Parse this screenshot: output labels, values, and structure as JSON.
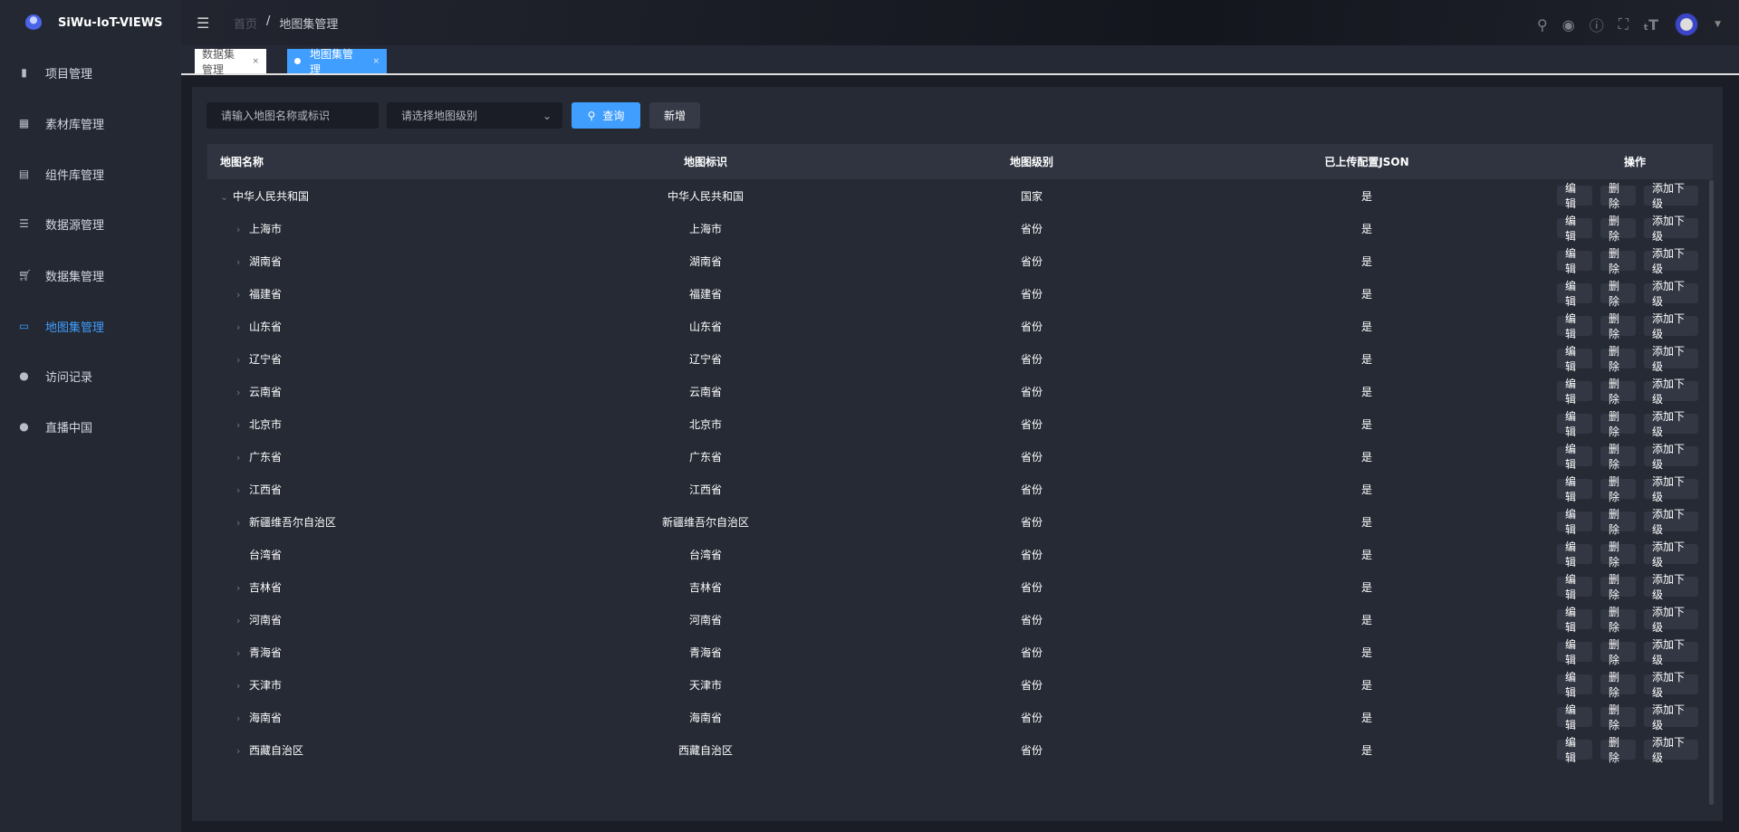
{
  "app": {
    "title": "SiWu-IoT-VIEWS"
  },
  "sidebar": {
    "items": [
      {
        "label": "项目管理",
        "icon": "file-copy-icon"
      },
      {
        "label": "素材库管理",
        "icon": "grid-icon"
      },
      {
        "label": "组件库管理",
        "icon": "document-icon"
      },
      {
        "label": "数据源管理",
        "icon": "sliders-icon"
      },
      {
        "label": "数据集管理",
        "icon": "cart-icon"
      },
      {
        "label": "地图集管理",
        "icon": "monitor-chart-icon",
        "active": true
      },
      {
        "label": "访问记录",
        "icon": "globe-icon"
      },
      {
        "label": "直播中国",
        "icon": "globe-icon"
      }
    ]
  },
  "header": {
    "breadcrumb": [
      "首页",
      "/",
      "地图集管理"
    ],
    "tools": [
      "search-icon",
      "github-icon",
      "help-icon",
      "fullscreen-icon",
      "font-size-icon"
    ]
  },
  "tabs": [
    {
      "label": "数据集管理",
      "close": "×"
    },
    {
      "label": "地图集管理",
      "close": "×",
      "active": true
    }
  ],
  "filters": {
    "name_placeholder": "请输入地图名称或标识",
    "level_placeholder": "请选择地图级别",
    "search_label": "查询",
    "add_label": "新增"
  },
  "colors": {
    "accent": "#409eff",
    "background": "#1a1d26",
    "sidebar": "#242833",
    "panel": "#252a34"
  },
  "table": {
    "headers": [
      "地图名称",
      "地图标识",
      "地图级别",
      "已上传配置JSON",
      "操作"
    ],
    "actions": [
      "编辑",
      "删除",
      "添加下级"
    ],
    "rows": [
      {
        "name": "中华人民共和国",
        "id": "中华人民共和国",
        "level": "国家",
        "json": "是",
        "depth": 0,
        "expand": "expanded"
      },
      {
        "name": "上海市",
        "id": "上海市",
        "level": "省份",
        "json": "是",
        "depth": 1,
        "expand": "collapsed"
      },
      {
        "name": "湖南省",
        "id": "湖南省",
        "level": "省份",
        "json": "是",
        "depth": 1,
        "expand": "collapsed"
      },
      {
        "name": "福建省",
        "id": "福建省",
        "level": "省份",
        "json": "是",
        "depth": 1,
        "expand": "collapsed"
      },
      {
        "name": "山东省",
        "id": "山东省",
        "level": "省份",
        "json": "是",
        "depth": 1,
        "expand": "collapsed"
      },
      {
        "name": "辽宁省",
        "id": "辽宁省",
        "level": "省份",
        "json": "是",
        "depth": 1,
        "expand": "collapsed"
      },
      {
        "name": "云南省",
        "id": "云南省",
        "level": "省份",
        "json": "是",
        "depth": 1,
        "expand": "collapsed"
      },
      {
        "name": "北京市",
        "id": "北京市",
        "level": "省份",
        "json": "是",
        "depth": 1,
        "expand": "collapsed"
      },
      {
        "name": "广东省",
        "id": "广东省",
        "level": "省份",
        "json": "是",
        "depth": 1,
        "expand": "collapsed"
      },
      {
        "name": "江西省",
        "id": "江西省",
        "level": "省份",
        "json": "是",
        "depth": 1,
        "expand": "collapsed"
      },
      {
        "name": "新疆维吾尔自治区",
        "id": "新疆维吾尔自治区",
        "level": "省份",
        "json": "是",
        "depth": 1,
        "expand": "collapsed"
      },
      {
        "name": "台湾省",
        "id": "台湾省",
        "level": "省份",
        "json": "是",
        "depth": 1,
        "expand": "none"
      },
      {
        "name": "吉林省",
        "id": "吉林省",
        "level": "省份",
        "json": "是",
        "depth": 1,
        "expand": "collapsed"
      },
      {
        "name": "河南省",
        "id": "河南省",
        "level": "省份",
        "json": "是",
        "depth": 1,
        "expand": "collapsed"
      },
      {
        "name": "青海省",
        "id": "青海省",
        "level": "省份",
        "json": "是",
        "depth": 1,
        "expand": "collapsed"
      },
      {
        "name": "天津市",
        "id": "天津市",
        "level": "省份",
        "json": "是",
        "depth": 1,
        "expand": "collapsed"
      },
      {
        "name": "海南省",
        "id": "海南省",
        "level": "省份",
        "json": "是",
        "depth": 1,
        "expand": "collapsed"
      },
      {
        "name": "西藏自治区",
        "id": "西藏自治区",
        "level": "省份",
        "json": "是",
        "depth": 1,
        "expand": "collapsed"
      }
    ]
  }
}
